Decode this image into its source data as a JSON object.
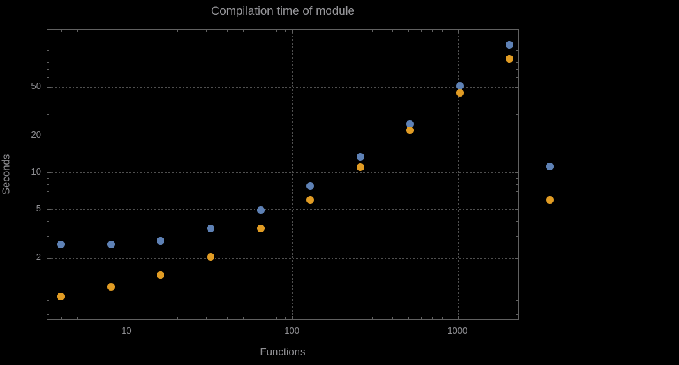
{
  "chart_data": {
    "type": "scatter",
    "title": "Compilation time of module",
    "xlabel": "Functions",
    "ylabel": "Seconds",
    "x_scale": "log",
    "y_scale": "log",
    "xlim": [
      3.3,
      2350
    ],
    "ylim": [
      0.62,
      146
    ],
    "grid": true,
    "legend_position": "right",
    "x": [
      4,
      8,
      16,
      32,
      64,
      128,
      256,
      512,
      1024,
      2048
    ],
    "series": [
      {
        "name": "series-1",
        "color": "#5E81B5",
        "values": [
          2.6,
          2.6,
          2.75,
          3.5,
          4.9,
          7.8,
          13.5,
          25,
          51,
          110
        ]
      },
      {
        "name": "series-2",
        "color": "#E19C24",
        "values": [
          0.97,
          1.17,
          1.45,
          2.05,
          3.5,
          6.0,
          11.0,
          22,
          45,
          85
        ]
      }
    ],
    "x_ticks": [
      {
        "value": 10,
        "label": "10"
      },
      {
        "value": 100,
        "label": "100"
      },
      {
        "value": 1000,
        "label": "1000"
      }
    ],
    "y_ticks": [
      {
        "value": 2,
        "label": "2"
      },
      {
        "value": 5,
        "label": "5"
      },
      {
        "value": 10,
        "label": "10"
      },
      {
        "value": 20,
        "label": "20"
      },
      {
        "value": 50,
        "label": "50"
      }
    ],
    "colors": {
      "background": "#000000",
      "frame": "#616161",
      "grid": "#4f4f4f",
      "text": "#8f8f93"
    }
  }
}
